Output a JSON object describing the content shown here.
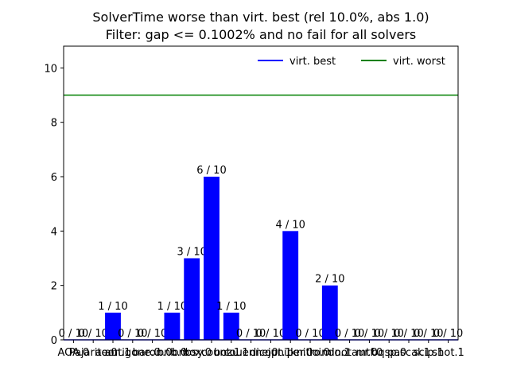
{
  "chart_data": {
    "type": "bar",
    "title": "SolverTime worse than virt. best (rel 10.0%, abs 1.0)",
    "subtitle": "Filter: gap <= 0.1002% and no fail for all solvers",
    "xlabel": "",
    "ylabel": "",
    "ylim": [
      0,
      10.8
    ],
    "yticks": [
      0,
      2,
      4,
      6,
      8,
      10
    ],
    "grid": false,
    "legend_position": "top-right",
    "categories": [
      "AOA.0",
      "Pajarito.0",
      "aeon.1",
      "antigone.0",
      "baron.0",
      "bnb.0",
      "bnbsy.0",
      "boxcount.1",
      "bozu.1",
      "couenne.0",
      "dicopt.1",
      "juniper.0",
      "knitro.0",
      "loindo.1",
      "minotaur.0",
      "mtf.0",
      "oqsp.0",
      "pascal.1",
      "scip.1",
      "shot.1"
    ],
    "series": [
      {
        "name": "",
        "color": "#0000ff",
        "values": [
          0,
          0,
          1,
          0,
          0,
          1,
          3,
          6,
          1,
          0,
          0,
          4,
          0,
          2,
          0,
          0,
          0,
          0,
          0,
          0
        ],
        "labels": [
          "0 / 10",
          "0 / 10",
          "1 / 10",
          "0 / 10",
          "0 / 10",
          "1 / 10",
          "3 / 10",
          "6 / 10",
          "1 / 10",
          "0 / 10",
          "0 / 10",
          "4 / 10",
          "0 / 10",
          "2 / 10",
          "0 / 10",
          "0 / 10",
          "0 / 10",
          "0 / 10",
          "0 / 10",
          "0 / 10"
        ]
      }
    ],
    "reference_lines": [
      {
        "name": "virt. best",
        "value": 0,
        "color": "#0000ff"
      },
      {
        "name": "virt. worst",
        "value": 9,
        "color": "#008000"
      }
    ]
  }
}
